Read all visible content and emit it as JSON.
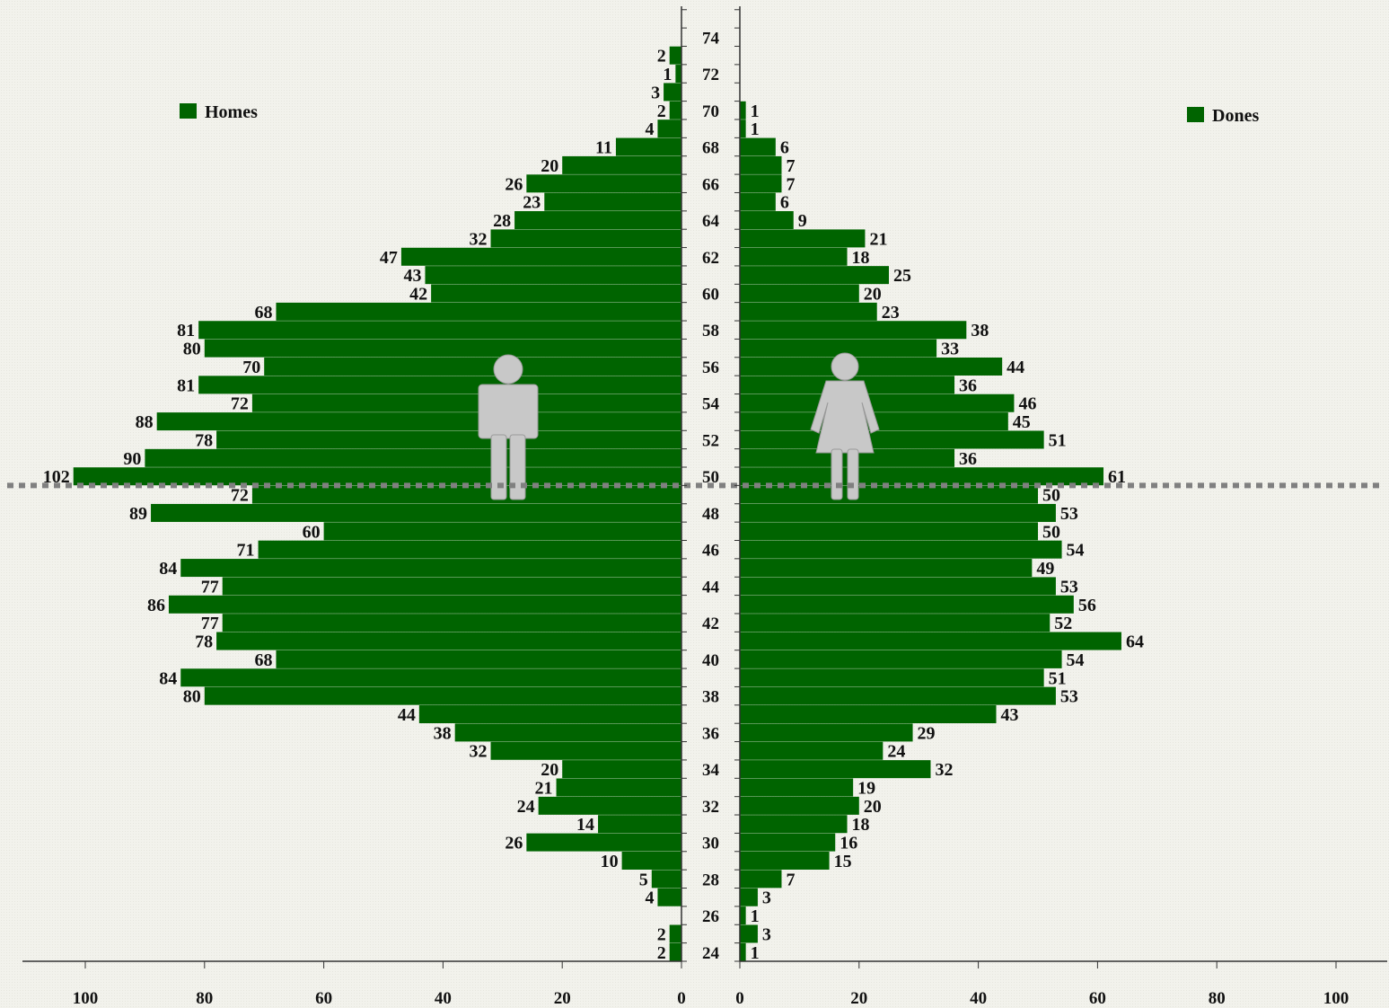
{
  "chart_data": {
    "type": "bar",
    "orientation": "horizontal",
    "layout": "population-pyramid",
    "ages": [
      24,
      25,
      26,
      27,
      28,
      29,
      30,
      31,
      32,
      33,
      34,
      35,
      36,
      37,
      38,
      39,
      40,
      41,
      42,
      43,
      44,
      45,
      46,
      47,
      48,
      49,
      50,
      51,
      52,
      53,
      54,
      55,
      56,
      57,
      58,
      59,
      60,
      61,
      62,
      63,
      64,
      65,
      66,
      67,
      68,
      69,
      70,
      71,
      72,
      73,
      74,
      75
    ],
    "age_tick_labels": [
      24,
      26,
      28,
      30,
      32,
      34,
      36,
      38,
      40,
      42,
      44,
      46,
      48,
      50,
      52,
      54,
      56,
      58,
      60,
      62,
      64,
      66,
      68,
      70,
      72,
      74
    ],
    "series": [
      {
        "name": "Homes",
        "side": "left",
        "values": [
          2,
          2,
          0,
          4,
          5,
          10,
          26,
          14,
          24,
          21,
          20,
          32,
          38,
          44,
          80,
          84,
          68,
          78,
          77,
          86,
          77,
          84,
          71,
          60,
          89,
          72,
          102,
          90,
          78,
          88,
          72,
          81,
          70,
          80,
          81,
          68,
          42,
          43,
          47,
          32,
          28,
          23,
          26,
          20,
          11,
          4,
          2,
          3,
          1,
          2,
          0,
          0
        ]
      },
      {
        "name": "Dones",
        "side": "right",
        "values": [
          1,
          3,
          1,
          3,
          7,
          15,
          16,
          18,
          20,
          19,
          32,
          24,
          29,
          43,
          53,
          51,
          54,
          64,
          52,
          56,
          53,
          49,
          54,
          50,
          53,
          50,
          61,
          36,
          51,
          45,
          46,
          36,
          44,
          33,
          38,
          23,
          20,
          25,
          18,
          21,
          9,
          6,
          7,
          7,
          6,
          1,
          1,
          0,
          0,
          0,
          0,
          0
        ]
      }
    ],
    "x_ticks": [
      100,
      80,
      60,
      40,
      20,
      0
    ],
    "xlim": [
      0,
      100
    ],
    "legend_position": "top-left and top-right",
    "reference_line_at_age": 49.5,
    "colors": {
      "bar": "#006400",
      "reference_line": "#808080",
      "icon": "#c8c8c8",
      "axis": "#333333"
    },
    "icons": [
      "male-figure-icon",
      "female-figure-icon"
    ]
  }
}
